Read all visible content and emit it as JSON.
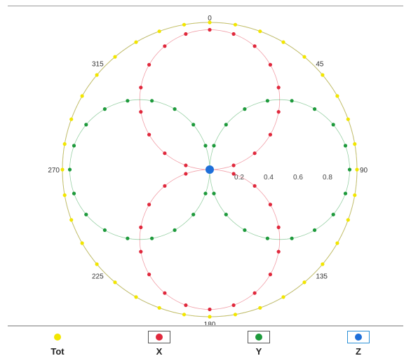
{
  "chart_data": {
    "type": "polar-scatter",
    "angle_labels": [
      {
        "angle": 0,
        "text": "0"
      },
      {
        "angle": 45,
        "text": "45"
      },
      {
        "angle": 90,
        "text": "90"
      },
      {
        "angle": 135,
        "text": "135"
      },
      {
        "angle": 180,
        "text": "180"
      },
      {
        "angle": 225,
        "text": "225"
      },
      {
        "angle": 270,
        "text": "270"
      },
      {
        "angle": 315,
        "text": "315"
      }
    ],
    "radial_ticks": [
      "0.2",
      "0.4",
      "0.6",
      "0.8"
    ],
    "rlim": [
      0,
      1
    ],
    "series": [
      {
        "name": "Tot",
        "color": "#f2e600",
        "model": "constant",
        "amplitude": 1.0,
        "angle_step": 10
      },
      {
        "name": "X",
        "color": "#e0283c",
        "model": "abs_cos",
        "amplitude": 0.95,
        "angle_step": 10
      },
      {
        "name": "Y",
        "color": "#1e9a3c",
        "model": "abs_sin",
        "amplitude": 0.95,
        "angle_step": 10
      },
      {
        "name": "Z",
        "color": "#1e6fd9",
        "model": "origin",
        "amplitude": 0.0,
        "angle_step": 0
      }
    ],
    "grid": false,
    "legend_position": "bottom"
  },
  "legend": {
    "items": [
      {
        "label": "Tot",
        "color": "#f2e600",
        "boxed": false,
        "box_color": ""
      },
      {
        "label": "X",
        "color": "#e0283c",
        "boxed": true,
        "box_color": "#555555"
      },
      {
        "label": "Y",
        "color": "#1e9a3c",
        "boxed": true,
        "box_color": "#555555"
      },
      {
        "label": "Z",
        "color": "#1e6fd9",
        "boxed": true,
        "box_color": "#2a8fd6"
      }
    ]
  }
}
